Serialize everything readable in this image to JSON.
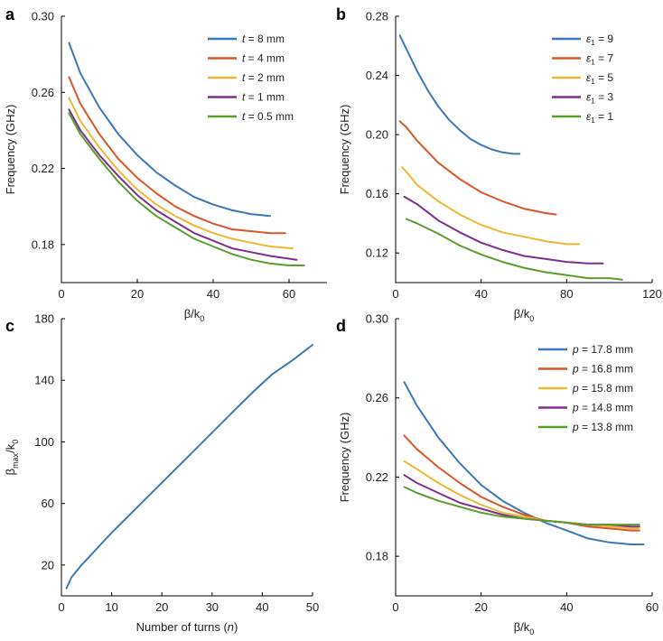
{
  "colors": [
    "#3b78b5",
    "#d8562a",
    "#f0b830",
    "#7e2f8e",
    "#5a9e2e"
  ],
  "chart_data": [
    {
      "panel": "a",
      "type": "line",
      "xlabel": "β/k0",
      "ylabel": "Frequency (GHz)",
      "xlim": [
        0,
        70
      ],
      "ylim": [
        0.16,
        0.3
      ],
      "xticks": [
        0,
        20,
        40,
        60
      ],
      "yticks": [
        0.18,
        0.22,
        0.26,
        0.3
      ],
      "ytick_labels": [
        "0.18",
        "0.22",
        "0.26",
        "0.30"
      ],
      "legend_position": "top-right",
      "series": [
        {
          "name_var": "t",
          "name_val": " = 8 mm",
          "x": [
            2,
            5,
            10,
            15,
            20,
            25,
            30,
            35,
            40,
            45,
            50,
            55
          ],
          "y": [
            0.286,
            0.27,
            0.252,
            0.238,
            0.227,
            0.218,
            0.211,
            0.205,
            0.201,
            0.198,
            0.196,
            0.195
          ]
        },
        {
          "name_var": "t",
          "name_val": " = 4 mm",
          "x": [
            2,
            5,
            10,
            15,
            20,
            25,
            30,
            35,
            40,
            45,
            50,
            55,
            59
          ],
          "y": [
            0.268,
            0.254,
            0.238,
            0.225,
            0.215,
            0.207,
            0.2,
            0.195,
            0.191,
            0.188,
            0.187,
            0.186,
            0.186
          ]
        },
        {
          "name_var": "t",
          "name_val": " = 2 mm",
          "x": [
            2,
            5,
            10,
            15,
            20,
            25,
            30,
            35,
            40,
            45,
            50,
            55,
            61
          ],
          "y": [
            0.257,
            0.245,
            0.231,
            0.219,
            0.209,
            0.201,
            0.195,
            0.19,
            0.186,
            0.183,
            0.181,
            0.179,
            0.178
          ]
        },
        {
          "name_var": "t",
          "name_val": " = 1 mm",
          "x": [
            2,
            5,
            10,
            15,
            20,
            25,
            30,
            35,
            40,
            45,
            50,
            55,
            62
          ],
          "y": [
            0.251,
            0.24,
            0.227,
            0.216,
            0.206,
            0.198,
            0.192,
            0.186,
            0.182,
            0.178,
            0.176,
            0.174,
            0.172
          ]
        },
        {
          "name_var": "t",
          "name_val": " = 0.5 mm",
          "x": [
            2,
            5,
            10,
            15,
            20,
            25,
            30,
            35,
            40,
            45,
            50,
            55,
            60,
            64
          ],
          "y": [
            0.249,
            0.238,
            0.225,
            0.213,
            0.203,
            0.195,
            0.189,
            0.183,
            0.179,
            0.175,
            0.172,
            0.17,
            0.169,
            0.169
          ]
        }
      ]
    },
    {
      "panel": "b",
      "type": "line",
      "xlabel": "β/k0",
      "ylabel": "Frequency (GHz)",
      "xlim": [
        0,
        120
      ],
      "ylim": [
        0.1,
        0.28
      ],
      "xticks": [
        0,
        40,
        80,
        120
      ],
      "yticks": [
        0.12,
        0.16,
        0.2,
        0.24,
        0.28
      ],
      "ytick_labels": [
        "0.12",
        "0.16",
        "0.20",
        "0.24",
        "0.28"
      ],
      "legend_position": "top-right",
      "series": [
        {
          "name_var": "ε",
          "name_sub": "1",
          "name_val": " = 9",
          "x": [
            2,
            5,
            10,
            15,
            20,
            25,
            30,
            35,
            40,
            45,
            50,
            55,
            58
          ],
          "y": [
            0.267,
            0.258,
            0.243,
            0.23,
            0.219,
            0.21,
            0.203,
            0.197,
            0.193,
            0.19,
            0.188,
            0.187,
            0.187
          ]
        },
        {
          "name_var": "ε",
          "name_sub": "1",
          "name_val": " = 7",
          "x": [
            2,
            5,
            10,
            20,
            30,
            40,
            50,
            60,
            70,
            75
          ],
          "y": [
            0.209,
            0.205,
            0.196,
            0.181,
            0.17,
            0.161,
            0.155,
            0.15,
            0.147,
            0.146
          ]
        },
        {
          "name_var": "ε",
          "name_sub": "1",
          "name_val": " = 5",
          "x": [
            3,
            5,
            10,
            20,
            30,
            40,
            50,
            60,
            70,
            80,
            86
          ],
          "y": [
            0.178,
            0.175,
            0.166,
            0.155,
            0.146,
            0.139,
            0.134,
            0.131,
            0.128,
            0.126,
            0.126
          ]
        },
        {
          "name_var": "ε",
          "name_sub": "1",
          "name_val": " = 3",
          "x": [
            4,
            10,
            20,
            30,
            40,
            50,
            60,
            70,
            80,
            90,
            97
          ],
          "y": [
            0.158,
            0.153,
            0.142,
            0.134,
            0.127,
            0.122,
            0.118,
            0.116,
            0.114,
            0.113,
            0.113
          ]
        },
        {
          "name_var": "ε",
          "name_sub": "1",
          "name_val": " = 1",
          "x": [
            5,
            10,
            20,
            30,
            40,
            50,
            60,
            70,
            80,
            90,
            100,
            106
          ],
          "y": [
            0.143,
            0.14,
            0.133,
            0.125,
            0.119,
            0.114,
            0.11,
            0.107,
            0.105,
            0.103,
            0.103,
            0.102
          ]
        }
      ]
    },
    {
      "panel": "c",
      "type": "line",
      "xlabel_pre": "Number of turns (",
      "xlabel_var": "n",
      "xlabel_post": ")",
      "ylabel_main": "β",
      "ylabel_sub1": "max",
      "ylabel_mid": "/k",
      "ylabel_sub2": "0",
      "xlim": [
        0,
        50
      ],
      "ylim": [
        0,
        180
      ],
      "xticks": [
        0,
        10,
        20,
        30,
        40,
        50
      ],
      "yticks": [
        20,
        60,
        100,
        140,
        180
      ],
      "series": [
        {
          "name": "beta_max",
          "x": [
            1,
            2,
            4,
            6,
            8,
            10,
            14,
            18,
            22,
            26,
            30,
            34,
            38,
            42,
            46,
            50
          ],
          "y": [
            5,
            12,
            20,
            27,
            34,
            41,
            54,
            67,
            80,
            93,
            106,
            119,
            132,
            144,
            153,
            163
          ]
        }
      ]
    },
    {
      "panel": "d",
      "type": "line",
      "xlabel": "β/k0",
      "ylabel": "Frequency (GHz)",
      "xlim": [
        0,
        60
      ],
      "ylim": [
        0.16,
        0.3
      ],
      "xticks": [
        0,
        20,
        40,
        60
      ],
      "yticks": [
        0.18,
        0.22,
        0.26,
        0.3
      ],
      "ytick_labels": [
        "0.18",
        "0.22",
        "0.26",
        "0.30"
      ],
      "legend_position": "top-right",
      "series": [
        {
          "name_var": "p",
          "name_val": " = 17.8 mm",
          "x": [
            2,
            5,
            10,
            15,
            20,
            25,
            30,
            35,
            40,
            45,
            50,
            55,
            58
          ],
          "y": [
            0.268,
            0.256,
            0.24,
            0.227,
            0.216,
            0.208,
            0.202,
            0.197,
            0.193,
            0.189,
            0.187,
            0.186,
            0.186
          ]
        },
        {
          "name_var": "p",
          "name_val": " = 16.8 mm",
          "x": [
            2,
            5,
            10,
            15,
            20,
            25,
            30,
            35,
            40,
            45,
            50,
            55,
            57
          ],
          "y": [
            0.241,
            0.234,
            0.225,
            0.217,
            0.21,
            0.205,
            0.201,
            0.198,
            0.197,
            0.195,
            0.194,
            0.193,
            0.193
          ]
        },
        {
          "name_var": "p",
          "name_val": " = 15.8 mm",
          "x": [
            2,
            5,
            10,
            15,
            20,
            25,
            30,
            35,
            40,
            45,
            50,
            55,
            57
          ],
          "y": [
            0.228,
            0.224,
            0.217,
            0.211,
            0.206,
            0.202,
            0.2,
            0.198,
            0.197,
            0.196,
            0.195,
            0.194,
            0.194
          ]
        },
        {
          "name_var": "p",
          "name_val": " = 14.8 mm",
          "x": [
            2,
            5,
            10,
            15,
            20,
            25,
            30,
            35,
            40,
            45,
            50,
            55,
            57
          ],
          "y": [
            0.221,
            0.217,
            0.212,
            0.207,
            0.204,
            0.201,
            0.199,
            0.198,
            0.197,
            0.196,
            0.196,
            0.195,
            0.195
          ]
        },
        {
          "name_var": "p",
          "name_val": " = 13.8 mm",
          "x": [
            2,
            5,
            10,
            15,
            20,
            25,
            30,
            35,
            40,
            45,
            50,
            55,
            57
          ],
          "y": [
            0.215,
            0.212,
            0.208,
            0.205,
            0.202,
            0.2,
            0.199,
            0.198,
            0.197,
            0.196,
            0.196,
            0.196,
            0.196
          ]
        }
      ]
    }
  ]
}
